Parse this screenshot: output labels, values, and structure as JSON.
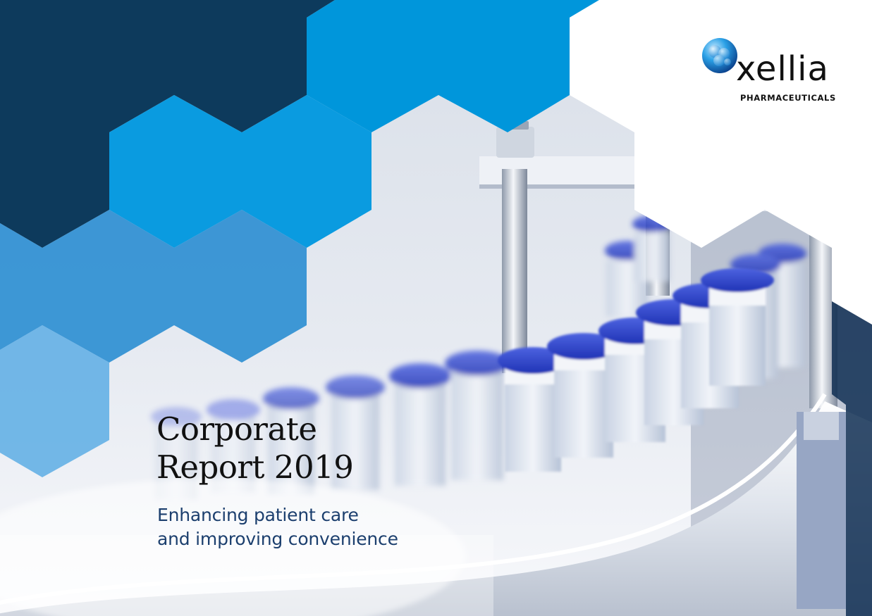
{
  "colors": {
    "navy": "#0d3a5c",
    "brand_blue": "#0096db",
    "mid_blue": "#3a95d6",
    "light_blue": "#6cb4e4",
    "vial_cap_blue": "#2a3fc4",
    "title_text": "#111111",
    "subtitle_text": "#1c3f6e"
  },
  "brand": {
    "name": "xellia",
    "tagline": "PHARMACEUTICALS",
    "logo_icon": "blue-molecule-sphere-icon"
  },
  "cover": {
    "title_line1": "Corporate",
    "title_line2": "Report 2019",
    "subtitle_line1": "Enhancing patient care",
    "subtitle_line2": "and improving convenience"
  },
  "photo": {
    "subject_icon": "vial-conveyor-photo"
  }
}
